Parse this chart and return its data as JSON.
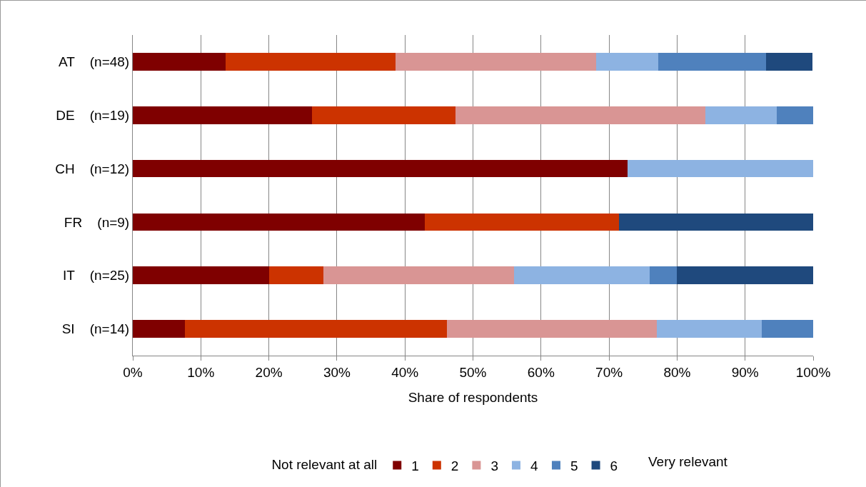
{
  "chart_data": {
    "type": "bar",
    "orientation": "horizontal",
    "stacked": true,
    "categories": [
      "AT    (n=48)",
      "DE    (n=19)",
      "CH    (n=12)",
      "FR    (n=9)",
      "IT    (n=25)",
      "SI    (n=14)"
    ],
    "series": [
      {
        "name": "1",
        "color": "#7f0000",
        "values": [
          13.6,
          26.3,
          72.7,
          42.9,
          20,
          7.7
        ]
      },
      {
        "name": "2",
        "color": "#cc3300",
        "values": [
          25.0,
          21.1,
          0,
          28.6,
          8,
          38.5
        ]
      },
      {
        "name": "3",
        "color": "#d99594",
        "values": [
          29.5,
          36.8,
          0,
          0,
          28,
          30.8
        ]
      },
      {
        "name": "4",
        "color": "#8db3e2",
        "values": [
          9.1,
          10.5,
          27.3,
          0,
          20,
          15.4
        ]
      },
      {
        "name": "5",
        "color": "#4f81bd",
        "values": [
          15.9,
          5.3,
          0,
          0,
          4,
          7.7
        ]
      },
      {
        "name": "6",
        "color": "#1f497d",
        "values": [
          6.8,
          0,
          0,
          28.6,
          20,
          0
        ]
      }
    ],
    "xlim": [
      0,
      100
    ],
    "xticks": [
      {
        "value": 0,
        "label": "0%"
      },
      {
        "value": 10,
        "label": "10%"
      },
      {
        "value": 20,
        "label": "20%"
      },
      {
        "value": 30,
        "label": "30%"
      },
      {
        "value": 40,
        "label": "40%"
      },
      {
        "value": 50,
        "label": "50%"
      },
      {
        "value": 60,
        "label": "60%"
      },
      {
        "value": 70,
        "label": "70%"
      },
      {
        "value": 80,
        "label": "80%"
      },
      {
        "value": 90,
        "label": "90%"
      },
      {
        "value": 100,
        "label": "100%"
      }
    ],
    "xlabel": "Share of respondents",
    "legend_title": "Not relevant at all",
    "annotations": [
      "Very relevant"
    ],
    "grid": "x",
    "legend": "bottom"
  }
}
